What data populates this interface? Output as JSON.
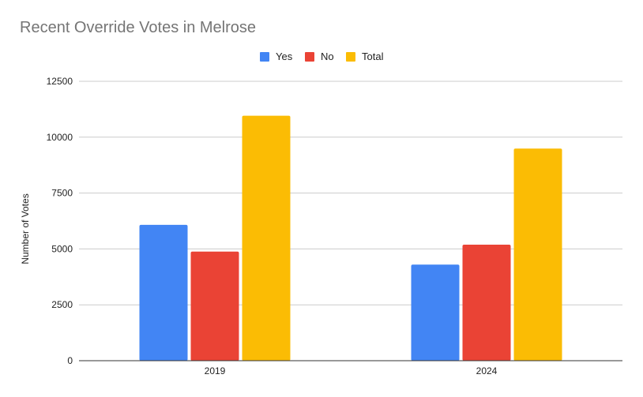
{
  "chart_data": {
    "type": "bar",
    "title": "Recent Override Votes in Melrose",
    "xlabel": "",
    "ylabel": "Number of Votes",
    "categories": [
      "2019",
      "2024"
    ],
    "series": [
      {
        "name": "Yes",
        "color": "#4285f4",
        "values": [
          6080,
          4300
        ]
      },
      {
        "name": "No",
        "color": "#ea4335",
        "values": [
          4880,
          5190
        ]
      },
      {
        "name": "Total",
        "color": "#fbbc04",
        "values": [
          10960,
          9490
        ]
      }
    ],
    "ylim": [
      0,
      12500
    ],
    "yticks": [
      "0",
      "2500",
      "5000",
      "7500",
      "10000",
      "12500"
    ],
    "grid": true,
    "legend_position": "top"
  }
}
